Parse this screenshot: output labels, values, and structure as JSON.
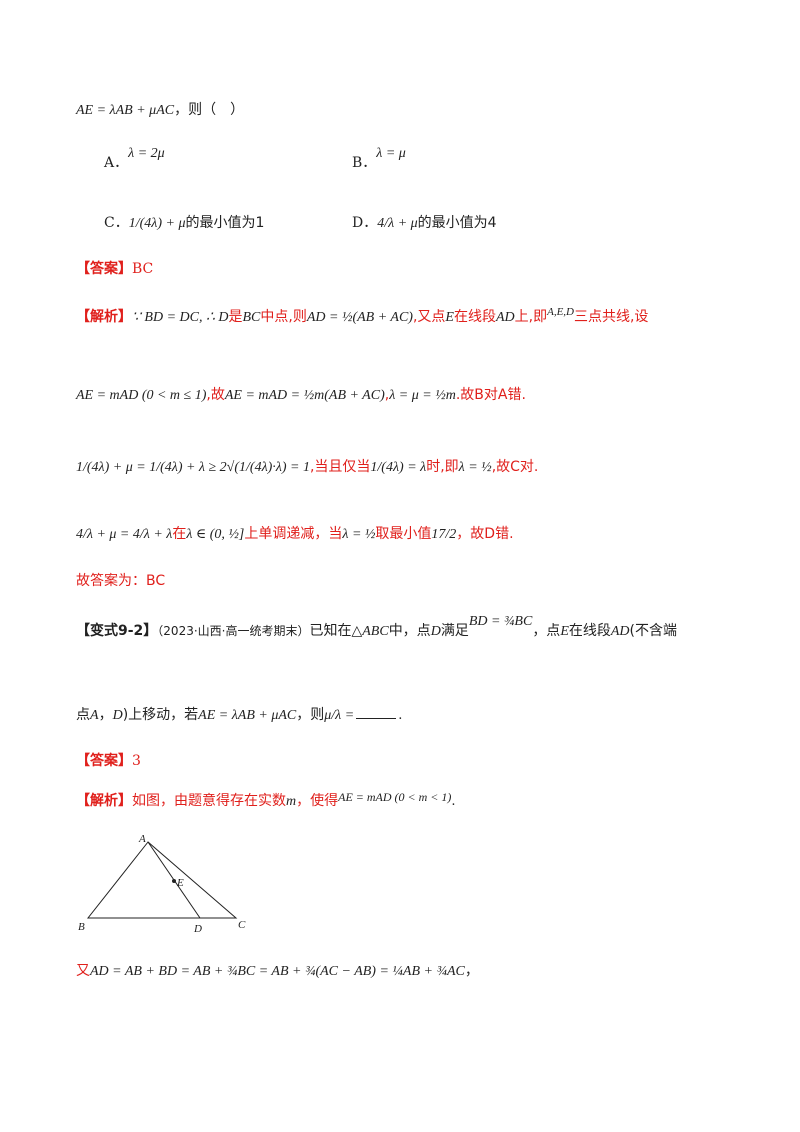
{
  "top": {
    "stem_formula": "AE = λAB + μAC",
    "stem_text": "，则（　）"
  },
  "options": {
    "a_label": "A．",
    "a_formula": "λ = 2μ",
    "b_label": "B．",
    "b_formula": "λ = μ",
    "c_label": "C．",
    "c_formula": "1/(4λ) + μ",
    "c_text": "的最小值为1",
    "d_label": "D．",
    "d_formula": "4/λ + μ",
    "d_text": "的最小值为4"
  },
  "answer1": {
    "tag": "【答案】",
    "value": "BC"
  },
  "analysis1": {
    "tag": "【解析】",
    "l1_math1": "∵ BD = DC, ∴ D",
    "l1_t1": "是",
    "l1_math2": "BC",
    "l1_t2": "中点,则",
    "l1_math3": "AD = ½(AB + AC)",
    "l1_t3": ",又点",
    "l1_math4": "E",
    "l1_t4": "在线段",
    "l1_math5": "AD",
    "l1_t5": "上,即",
    "l1_math6": "A,E,D",
    "l1_t6": "三点共线,设",
    "l2_math1": "AE = mAD (0 < m ≤ 1)",
    "l2_t1": ",故",
    "l2_math2": "AE = mAD = ½m(AB + AC)",
    "l2_t2": ",",
    "l2_math3": "λ = μ = ½m",
    "l2_t3": ".故B对A错.",
    "l3_math1": "1/(4λ) + μ = 1/(4λ) + λ ≥ 2√(1/(4λ)·λ) = 1",
    "l3_t1": ",当且仅当",
    "l3_math2": "1/(4λ) = λ",
    "l3_t2": "时,即",
    "l3_math3": "λ = ½",
    "l3_t3": ",故C对.",
    "l4_math1": "4/λ + μ = 4/λ + λ",
    "l4_t1": "在",
    "l4_math2": "λ ∈ (0, ½]",
    "l4_t2": "上单调递减，当",
    "l4_math3": "λ = ½",
    "l4_t3": "取最小值",
    "l4_math4": "17/2",
    "l4_t4": "，故D错."
  },
  "final1": "故答案为：BC",
  "variant": {
    "tag": "【变式9-2】",
    "source": "（2023·山西·高一统考期末）",
    "t1": "已知在",
    "m1": "△ABC",
    "t2": "中，点",
    "m2": "D",
    "t3": "满足",
    "m3": "BD = ¾BC",
    "t4": "，点",
    "m4": "E",
    "t5": "在线段",
    "m5": "AD",
    "t6": "(不含端",
    "l2_t1": "点",
    "l2_m1": "A",
    "l2_t2": "，",
    "l2_m2": "D",
    "l2_t3": ")上移动，若",
    "l2_m3": "AE = λAB + μAC",
    "l2_t4": "，则",
    "l2_m4": "μ/λ =",
    "l2_t5": "."
  },
  "answer2": {
    "tag": "【答案】",
    "value": "3"
  },
  "analysis2": {
    "tag": "【解析】",
    "t1": "如图，由题意得存在实数",
    "m1": "m",
    "t2": "，使得",
    "m2": "AE = mAD (0 < m < 1)",
    "t3": "."
  },
  "figure": {
    "label_a": "A",
    "label_b": "B",
    "label_c": "C",
    "label_d": "D",
    "label_e": "E"
  },
  "last": {
    "t1": "又",
    "math": "AD = AB + BD = AB + ¾BC = AB + ¾(AC − AB) = ¼AB + ¾AC",
    "t2": "，"
  }
}
